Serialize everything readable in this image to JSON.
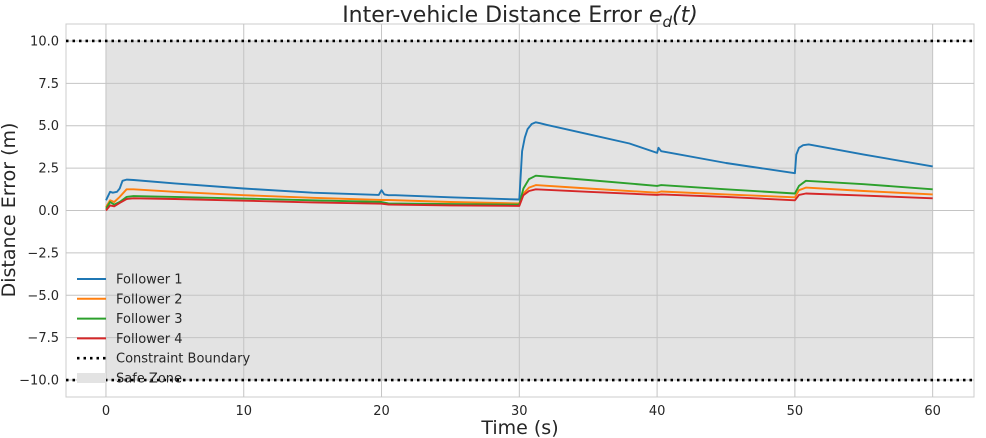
{
  "chart_data": {
    "type": "line",
    "title_prefix": "Inter-vehicle Distance Error ",
    "title_math": "e",
    "title_subscript": "d",
    "title_suffix": "(t)",
    "xlabel": "Time (s)",
    "ylabel": "Distance Error (m)",
    "xlim": [
      -2.9,
      63
    ],
    "ylim": [
      -11.0,
      11.0
    ],
    "xticks": [
      "0",
      "10",
      "20",
      "30",
      "40",
      "50",
      "60"
    ],
    "xtick_values": [
      0,
      10,
      20,
      30,
      40,
      50,
      60
    ],
    "yticks": [
      "10.0",
      "7.5",
      "5.0",
      "2.5",
      "0.0",
      "−2.5",
      "−5.0",
      "−7.5",
      "−10.0"
    ],
    "ytick_values": [
      10,
      7.5,
      5,
      2.5,
      0,
      -2.5,
      -5,
      -7.5,
      -10
    ],
    "grid": true,
    "legend_position": "lower-left",
    "safe_zone": {
      "name": "Safe Zone",
      "x": [
        0,
        60
      ],
      "y": [
        -10,
        10
      ],
      "color": "#e3e3e3"
    },
    "constraint_boundary": {
      "name": "Constraint Boundary",
      "values": [
        10,
        -10
      ],
      "color": "#000000"
    },
    "series": [
      {
        "name": "Follower 1",
        "color": "#1f77b4",
        "x": [
          0,
          0.3,
          0.5,
          0.8,
          1.0,
          1.2,
          1.5,
          2.0,
          5,
          10,
          15,
          19.8,
          20.0,
          20.2,
          20.5,
          21,
          25,
          30.0,
          30.2,
          30.4,
          30.6,
          30.9,
          31.2,
          31.5,
          32,
          35,
          38,
          40.0,
          40.1,
          40.3,
          41,
          45,
          50.0,
          50.1,
          50.3,
          50.6,
          51,
          55,
          60
        ],
        "y": [
          0.6,
          1.1,
          1.05,
          1.1,
          1.3,
          1.75,
          1.82,
          1.8,
          1.6,
          1.3,
          1.05,
          0.92,
          1.2,
          0.95,
          0.9,
          0.9,
          0.78,
          0.65,
          3.5,
          4.3,
          4.8,
          5.1,
          5.2,
          5.15,
          5.05,
          4.5,
          3.95,
          3.4,
          3.7,
          3.5,
          3.4,
          2.8,
          2.2,
          3.3,
          3.7,
          3.85,
          3.9,
          3.3,
          2.6
        ]
      },
      {
        "name": "Follower 2",
        "color": "#ff7f0e",
        "x": [
          0,
          0.3,
          0.6,
          1.0,
          1.5,
          2,
          5,
          10,
          15,
          20,
          20.5,
          25,
          30,
          30.3,
          30.7,
          31.2,
          35,
          40,
          40.3,
          45,
          50,
          50.3,
          50.8,
          55,
          60
        ],
        "y": [
          0.2,
          0.6,
          0.5,
          0.8,
          1.25,
          1.25,
          1.1,
          0.9,
          0.75,
          0.62,
          0.62,
          0.5,
          0.42,
          1.0,
          1.35,
          1.5,
          1.3,
          1.05,
          1.12,
          0.95,
          0.78,
          1.2,
          1.35,
          1.15,
          0.95
        ]
      },
      {
        "name": "Follower 3",
        "color": "#2ca02c",
        "x": [
          0,
          0.3,
          0.6,
          1.0,
          1.5,
          2,
          5,
          10,
          15,
          20,
          20.5,
          25,
          30,
          30.3,
          30.7,
          31.2,
          35,
          40,
          40.3,
          45,
          50,
          50.3,
          50.8,
          55,
          60
        ],
        "y": [
          0.1,
          0.5,
          0.35,
          0.5,
          0.8,
          0.85,
          0.8,
          0.7,
          0.6,
          0.5,
          0.42,
          0.38,
          0.35,
          1.3,
          1.85,
          2.05,
          1.8,
          1.45,
          1.5,
          1.25,
          1.0,
          1.45,
          1.75,
          1.55,
          1.25
        ]
      },
      {
        "name": "Follower 4",
        "color": "#d62728",
        "x": [
          0,
          0.3,
          0.6,
          1.0,
          1.5,
          2,
          5,
          10,
          15,
          20,
          20.5,
          25,
          30,
          30.3,
          30.7,
          31.2,
          35,
          40,
          40.3,
          45,
          50,
          50.3,
          50.8,
          55,
          60
        ],
        "y": [
          0.0,
          0.3,
          0.25,
          0.45,
          0.68,
          0.72,
          0.68,
          0.58,
          0.48,
          0.4,
          0.35,
          0.3,
          0.27,
          0.9,
          1.15,
          1.25,
          1.1,
          0.92,
          0.95,
          0.8,
          0.6,
          0.92,
          1.0,
          0.88,
          0.72
        ]
      }
    ]
  }
}
